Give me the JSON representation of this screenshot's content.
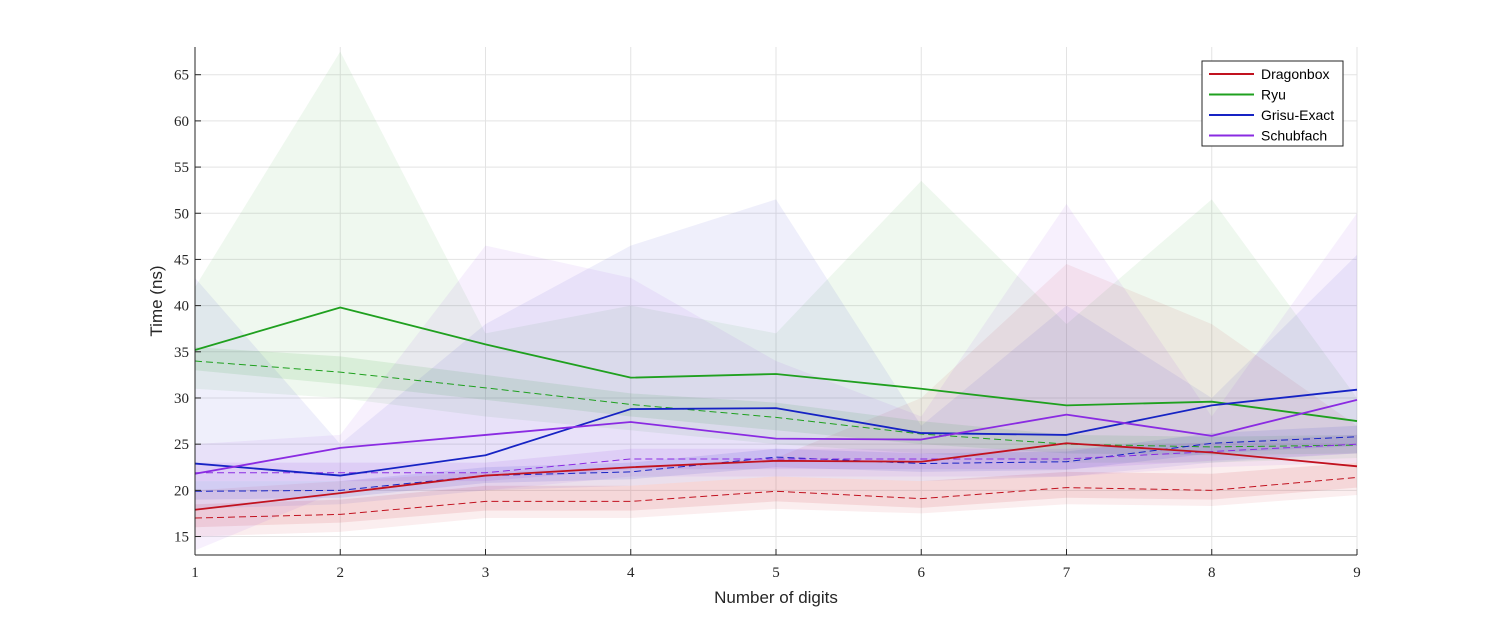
{
  "chart_data": {
    "type": "line",
    "title": "",
    "xlabel": "Number of digits",
    "ylabel": "Time (ns)",
    "xlim": [
      1,
      9
    ],
    "ylim": [
      13,
      68
    ],
    "xticks": [
      1,
      2,
      3,
      4,
      5,
      6,
      7,
      8,
      9
    ],
    "yticks": [
      15,
      20,
      25,
      30,
      35,
      40,
      45,
      50,
      55,
      60,
      65
    ],
    "grid": true,
    "legend_position": "top-right",
    "x": [
      1,
      2,
      3,
      4,
      5,
      6,
      7,
      8,
      9
    ],
    "series": [
      {
        "name": "Dragonbox",
        "color": "#c1121f",
        "values": [
          17.9,
          19.7,
          21.6,
          22.5,
          23.2,
          23.1,
          25.1,
          24.1,
          22.6
        ],
        "median_values": [
          17.0,
          17.4,
          18.8,
          18.8,
          19.9,
          19.1,
          20.3,
          20.0,
          21.4
        ],
        "band_inner_lower": [
          16.0,
          16.5,
          17.8,
          17.8,
          18.8,
          18.1,
          19.2,
          19.0,
          20.3
        ],
        "band_inner_upper": [
          18.5,
          19.0,
          20.5,
          20.5,
          21.5,
          21.0,
          22.0,
          21.8,
          23.0
        ],
        "band_outer_lower": [
          15.0,
          15.5,
          17.0,
          17.0,
          18.0,
          17.5,
          18.5,
          18.3,
          19.5
        ],
        "band_outer_upper": [
          20.0,
          21.0,
          22.0,
          22.5,
          23.5,
          30.0,
          44.5,
          38.0,
          27.0
        ]
      },
      {
        "name": "Ryu",
        "color": "#1fa01f",
        "values": [
          35.2,
          39.8,
          35.8,
          32.2,
          32.6,
          31.0,
          29.2,
          29.6,
          27.5
        ],
        "median_values": [
          34.0,
          32.8,
          31.1,
          29.3,
          27.9,
          26.1,
          25.0,
          24.7,
          24.9
        ],
        "band_inner_lower": [
          33.0,
          31.5,
          29.8,
          28.0,
          26.5,
          25.0,
          24.0,
          23.8,
          24.0
        ],
        "band_inner_upper": [
          35.5,
          34.5,
          32.5,
          30.5,
          29.5,
          27.5,
          26.0,
          25.8,
          26.0
        ],
        "band_outer_lower": [
          31.0,
          30.0,
          28.0,
          26.5,
          25.0,
          24.0,
          23.0,
          23.0,
          23.5
        ],
        "band_outer_upper": [
          42.0,
          67.5,
          37.0,
          40.0,
          37.0,
          53.5,
          38.0,
          51.5,
          30.0
        ]
      },
      {
        "name": "Grisu-Exact",
        "color": "#1623c4",
        "values": [
          22.9,
          21.6,
          23.8,
          28.8,
          28.9,
          26.2,
          26.0,
          29.2,
          30.9
        ],
        "median_values": [
          19.9,
          20.0,
          21.6,
          22.0,
          23.6,
          22.9,
          23.1,
          25.1,
          25.8
        ],
        "band_inner_lower": [
          19.0,
          19.2,
          20.8,
          21.2,
          22.5,
          22.0,
          22.2,
          24.0,
          24.8
        ],
        "band_inner_upper": [
          21.0,
          21.0,
          22.5,
          23.0,
          24.5,
          24.0,
          24.2,
          26.2,
          27.0
        ],
        "band_outer_lower": [
          18.0,
          18.5,
          20.0,
          20.5,
          21.5,
          21.0,
          21.5,
          23.0,
          24.0
        ],
        "band_outer_upper": [
          43.0,
          25.0,
          38.0,
          46.5,
          51.5,
          27.0,
          40.0,
          30.0,
          45.5
        ]
      },
      {
        "name": "Schubfach",
        "color": "#8a2be2",
        "values": [
          21.8,
          24.6,
          26.0,
          27.4,
          25.6,
          25.5,
          28.2,
          25.9,
          29.8
        ],
        "median_values": [
          21.9,
          21.9,
          21.9,
          23.4,
          23.4,
          23.4,
          23.4,
          24.2,
          25.0
        ],
        "band_inner_lower": [
          21.0,
          21.0,
          21.0,
          22.3,
          22.3,
          22.3,
          22.3,
          23.2,
          24.0
        ],
        "band_inner_upper": [
          23.0,
          23.0,
          23.0,
          24.5,
          24.5,
          24.5,
          24.5,
          25.2,
          26.0
        ],
        "band_outer_lower": [
          13.5,
          20.0,
          20.0,
          21.5,
          21.5,
          21.5,
          21.5,
          22.5,
          23.0
        ],
        "band_outer_upper": [
          25.0,
          26.0,
          46.5,
          43.0,
          34.0,
          28.0,
          51.0,
          28.0,
          50.0
        ]
      }
    ]
  }
}
